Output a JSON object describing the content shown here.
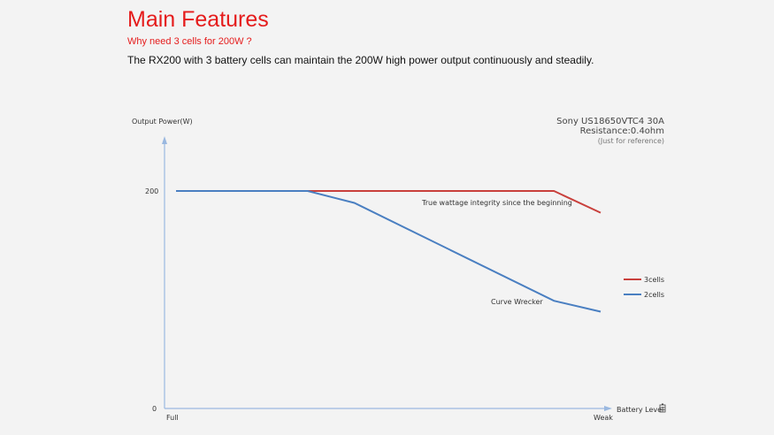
{
  "header": {
    "title": "Main Features",
    "subtitle": "Why need 3 cells for 200W ?",
    "description": "The RX200 with 3 battery cells can maintain the 200W high power output continuously and steadily."
  },
  "chart_data": {
    "type": "line",
    "ylabel": "Output Power(W)",
    "xlabel": "Battery Level",
    "y_ticks": [
      "200",
      "0"
    ],
    "x_ticks": [
      "Full",
      "Weak"
    ],
    "ylim": [
      0,
      200
    ],
    "info": {
      "line1": "Sony US18650VTC4  30A",
      "line2": "Resistance:0.4ohm",
      "line3": "(Just for reference)"
    },
    "legend_position": "right",
    "colors": {
      "3cells": "#c9403c",
      "2cells": "#4a7fc1",
      "axis": "#9ab8e0"
    },
    "series": [
      {
        "name": "3cells",
        "x": [
          0,
          0.89,
          1.0
        ],
        "y": [
          200,
          200,
          180
        ]
      },
      {
        "name": "2cells",
        "x": [
          0,
          0.31,
          0.42,
          0.89,
          1.0
        ],
        "y": [
          200,
          200,
          189,
          99,
          89
        ]
      }
    ],
    "annotations": [
      {
        "text": "True wattage integrity since the beginning"
      },
      {
        "text": "Curve Wrecker"
      }
    ]
  }
}
